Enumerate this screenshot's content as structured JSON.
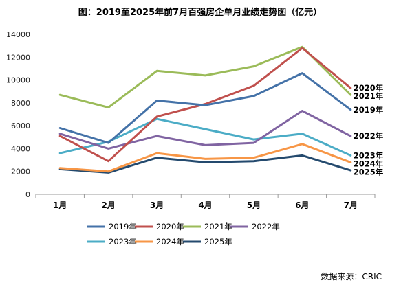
{
  "chart_data": {
    "type": "line",
    "title": "图：2019至2025年前7月百强房企单月业绩走势图（亿元）",
    "categories": [
      "1月",
      "2月",
      "3月",
      "4月",
      "5月",
      "6月",
      "7月"
    ],
    "ylim": [
      0,
      14000
    ],
    "yticks": [
      "0",
      "2000",
      "4000",
      "6000",
      "8000",
      "10000",
      "12000",
      "14000"
    ],
    "grid": false,
    "legend_position": "bottom",
    "series": [
      {
        "name": "2019年",
        "color": "#4472a8",
        "values": [
          5800,
          4500,
          8200,
          7800,
          8600,
          10600,
          7400
        ]
      },
      {
        "name": "2020年",
        "color": "#c0504d",
        "values": [
          5100,
          2900,
          6800,
          7900,
          9500,
          12800,
          9300
        ]
      },
      {
        "name": "2021年",
        "color": "#9bbb59",
        "values": [
          8700,
          7600,
          10800,
          10400,
          11200,
          12900,
          8700
        ]
      },
      {
        "name": "2022年",
        "color": "#8064a2",
        "values": [
          5300,
          4000,
          5100,
          4300,
          4500,
          7300,
          5100
        ]
      },
      {
        "name": "2023年",
        "color": "#4bacc6",
        "values": [
          3600,
          4600,
          6600,
          5700,
          4800,
          5300,
          3400
        ]
      },
      {
        "name": "2024年",
        "color": "#f79646",
        "values": [
          2300,
          2000,
          3600,
          3100,
          3200,
          4400,
          2800
        ]
      },
      {
        "name": "2025年",
        "color": "#244a6e",
        "values": [
          2200,
          1900,
          3200,
          2800,
          2900,
          3400,
          2100
        ]
      }
    ],
    "end_labels": [
      "2020年",
      "2021年",
      "2019年",
      "2022年",
      "2023年",
      "2024年",
      "2025年"
    ]
  },
  "source": "数据来源：CRIC"
}
